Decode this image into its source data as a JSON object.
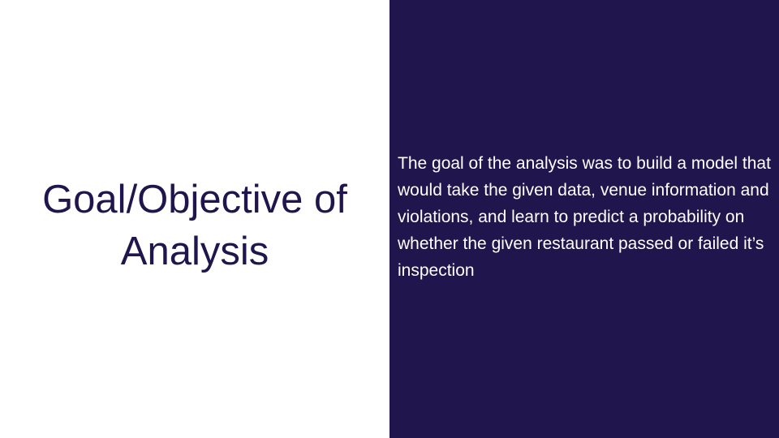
{
  "slide": {
    "title": "Goal/Objective of Analysis",
    "body": "The goal of the analysis was to build a model that would take the given data, venue information and violations, and learn to predict a probability on whether the given restaurant passed or failed it’s inspection"
  },
  "colors": {
    "accent_panel": "#21154d",
    "title_text": "#21154d",
    "body_text": "#ffffff",
    "background": "#ffffff"
  }
}
